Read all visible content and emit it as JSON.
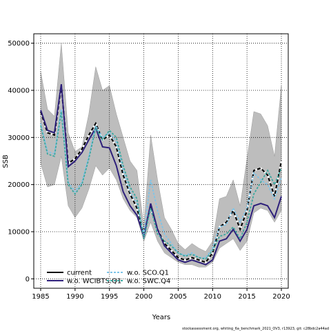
{
  "chart_data": {
    "type": "line",
    "title": "",
    "xlabel": "Years",
    "ylabel": "SSB",
    "xlim": [
      1984,
      2021
    ],
    "ylim": [
      -2000,
      52000
    ],
    "xticks": [
      1985,
      1990,
      1995,
      2000,
      2005,
      2010,
      2015,
      2020
    ],
    "yticks": [
      0,
      10000,
      20000,
      30000,
      40000,
      50000
    ],
    "grid": true,
    "legend_position": "bottom-left",
    "x": [
      1985,
      1986,
      1987,
      1988,
      1989,
      1990,
      1991,
      1992,
      1993,
      1994,
      1995,
      1996,
      1997,
      1998,
      1999,
      2000,
      2001,
      2002,
      2003,
      2004,
      2005,
      2006,
      2007,
      2008,
      2009,
      2010,
      2011,
      2012,
      2013,
      2014,
      2015,
      2016,
      2017,
      2018,
      2019,
      2020
    ],
    "band": {
      "color": "#bdbdbd",
      "upper": [
        44000,
        36000,
        34500,
        50000,
        31000,
        27000,
        28000,
        35000,
        45000,
        40000,
        41000,
        35000,
        30000,
        25000,
        23000,
        11000,
        30500,
        21000,
        13000,
        10500,
        7500,
        6200,
        7500,
        6500,
        5800,
        8000,
        17000,
        17500,
        21000,
        15500,
        25500,
        35500,
        35000,
        32500,
        26000,
        41000
      ],
      "lower": [
        24500,
        19500,
        20000,
        26000,
        15500,
        13000,
        15000,
        19000,
        24000,
        22000,
        23500,
        21000,
        17000,
        14500,
        13000,
        8000,
        12000,
        8000,
        5500,
        4500,
        3500,
        3000,
        3000,
        2500,
        2500,
        3500,
        6500,
        7500,
        8500,
        6000,
        8000,
        14000,
        15000,
        14500,
        12000,
        14500
      ]
    },
    "series": [
      {
        "name": "current",
        "color": "#000000",
        "dash": "none",
        "values": [
          35500,
          31000,
          30500,
          41000,
          24500,
          25500,
          27500,
          30500,
          33000,
          29500,
          30500,
          28000,
          22000,
          18000,
          15000,
          9500,
          15500,
          10500,
          7500,
          6000,
          4500,
          4000,
          4500,
          4000,
          3500,
          5500,
          11000,
          12000,
          14500,
          10500,
          14500,
          23000,
          23500,
          22000,
          17500,
          25000
        ]
      },
      {
        "name": "w.o. WCIBTS.Q1",
        "color": "#2d1f7a",
        "dash": "none",
        "values": [
          35800,
          31500,
          31000,
          41300,
          23800,
          25000,
          26800,
          29500,
          32000,
          28000,
          27800,
          24000,
          18500,
          15500,
          13500,
          9000,
          16000,
          10500,
          7000,
          5500,
          4000,
          3500,
          4000,
          3500,
          3000,
          4000,
          8000,
          8500,
          10500,
          8000,
          10500,
          15500,
          16000,
          15500,
          13000,
          17500
        ]
      },
      {
        "name": "w.o. SCO.Q1",
        "color": "#7ec4e8",
        "dash": "3,2",
        "values": [
          33000,
          27000,
          26500,
          36000,
          20500,
          18500,
          20500,
          26000,
          32500,
          30000,
          31000,
          29000,
          23000,
          18500,
          16000,
          9500,
          21000,
          14500,
          9500,
          7500,
          5500,
          5000,
          5500,
          4500,
          4500,
          6500,
          11000,
          11500,
          15000,
          12000,
          15000,
          22500,
          21000,
          20000,
          17000,
          21500
        ]
      },
      {
        "name": "w.o. SWC.Q4",
        "color": "#3aa8a0",
        "dash": "3,2",
        "values": [
          32500,
          26500,
          26000,
          35500,
          20000,
          18000,
          20000,
          25500,
          32000,
          29500,
          31500,
          30000,
          24000,
          19500,
          17000,
          8500,
          15000,
          9500,
          8000,
          7000,
          5500,
          4800,
          5200,
          4500,
          4200,
          6000,
          9000,
          9500,
          11000,
          8500,
          12000,
          18000,
          20500,
          23000,
          20000,
          23500
        ]
      }
    ]
  },
  "legend": {
    "items": [
      {
        "label": "current",
        "color": "#000000",
        "dash": "none",
        "col": 0,
        "row": 0
      },
      {
        "label": "w.o. WCIBTS.Q1",
        "color": "#2d1f7a",
        "dash": "none",
        "col": 0,
        "row": 1
      },
      {
        "label": "w.o. SCO.Q1",
        "color": "#7ec4e8",
        "dash": "3,2",
        "col": 1,
        "row": 0
      },
      {
        "label": "w.o. SWC.Q4",
        "color": "#3aa8a0",
        "dash": "3,2",
        "col": 1,
        "row": 1
      }
    ]
  },
  "footer": "stockassessment.org, whiting_6a_benchmark_2021_OV3, r13923, git: c28bdc2a44ad"
}
